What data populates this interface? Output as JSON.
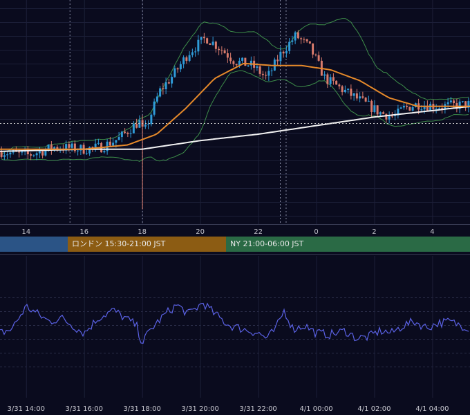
{
  "colors": {
    "background": "#0a0b1e",
    "up_candle": "#2f9bd8",
    "down_candle": "#d97b6c",
    "bollinger": "#3e8f4a",
    "ma_short": "#e78a2a",
    "ma_long": "#f2f2f2",
    "oscillator": "#5b62e6",
    "session_tokyo": "#2b5486",
    "session_london": "#8c5c13",
    "session_ny": "#2a6a45"
  },
  "sessions": [
    {
      "id": "tokyo",
      "label": ""
    },
    {
      "id": "london",
      "label": "ロンドン 15:30-21:00 JST"
    },
    {
      "id": "ny",
      "label": "NY 21:00-06:00 JST"
    }
  ],
  "chart_data": [
    {
      "type": "candlestick",
      "x_ticks": [
        "14",
        "16",
        "18",
        "20",
        "22",
        "0",
        "2",
        "4"
      ],
      "x_tick_hours": [
        14,
        16,
        18,
        20,
        22,
        24,
        26,
        28
      ],
      "x_range_hours": [
        13.1,
        29.3
      ],
      "price_path": [
        [
          13.1,
          0.32
        ],
        [
          14.0,
          0.3
        ],
        [
          15.0,
          0.34
        ],
        [
          16.0,
          0.33
        ],
        [
          16.6,
          0.34
        ],
        [
          17.2,
          0.38
        ],
        [
          17.9,
          0.46
        ],
        [
          18.05,
          0.4
        ],
        [
          18.6,
          0.6
        ],
        [
          19.1,
          0.68
        ],
        [
          19.6,
          0.78
        ],
        [
          20.2,
          0.85
        ],
        [
          20.7,
          0.8
        ],
        [
          21.2,
          0.74
        ],
        [
          21.8,
          0.72
        ],
        [
          22.3,
          0.66
        ],
        [
          22.8,
          0.78
        ],
        [
          23.3,
          0.86
        ],
        [
          23.8,
          0.8
        ],
        [
          24.3,
          0.66
        ],
        [
          25.0,
          0.6
        ],
        [
          25.6,
          0.55
        ],
        [
          26.2,
          0.5
        ],
        [
          26.7,
          0.48
        ],
        [
          27.0,
          0.52
        ],
        [
          27.5,
          0.54
        ],
        [
          28.3,
          0.53
        ],
        [
          29.3,
          0.54
        ]
      ],
      "ma_short_path": [
        [
          13.1,
          0.33
        ],
        [
          16.0,
          0.33
        ],
        [
          17.5,
          0.35
        ],
        [
          18.5,
          0.4
        ],
        [
          19.5,
          0.52
        ],
        [
          20.5,
          0.66
        ],
        [
          21.5,
          0.73
        ],
        [
          22.5,
          0.72
        ],
        [
          23.5,
          0.72
        ],
        [
          24.5,
          0.7
        ],
        [
          25.5,
          0.65
        ],
        [
          26.5,
          0.57
        ],
        [
          27.5,
          0.53
        ],
        [
          29.3,
          0.53
        ]
      ],
      "ma_long_path": [
        [
          13.1,
          0.32
        ],
        [
          16.0,
          0.33
        ],
        [
          18.0,
          0.33
        ],
        [
          20.0,
          0.37
        ],
        [
          22.0,
          0.4
        ],
        [
          24.0,
          0.44
        ],
        [
          26.0,
          0.48
        ],
        [
          28.0,
          0.51
        ],
        [
          29.3,
          0.53
        ]
      ]
    },
    {
      "type": "line",
      "x_ticks": [
        "3/31 14:00",
        "3/31 16:00",
        "3/31 18:00",
        "3/31 20:00",
        "3/31 22:00",
        "4/1 00:00",
        "4/1 02:00",
        "4/1 04:00"
      ],
      "oscillator_path": [
        [
          13.1,
          0.35
        ],
        [
          13.5,
          0.4
        ],
        [
          14.0,
          0.7
        ],
        [
          14.4,
          0.6
        ],
        [
          14.8,
          0.5
        ],
        [
          15.2,
          0.55
        ],
        [
          15.6,
          0.45
        ],
        [
          16.0,
          0.35
        ],
        [
          16.5,
          0.55
        ],
        [
          17.0,
          0.65
        ],
        [
          17.4,
          0.55
        ],
        [
          17.8,
          0.45
        ],
        [
          18.0,
          0.22
        ],
        [
          18.3,
          0.4
        ],
        [
          18.8,
          0.6
        ],
        [
          19.2,
          0.72
        ],
        [
          19.6,
          0.6
        ],
        [
          20.1,
          0.75
        ],
        [
          20.5,
          0.6
        ],
        [
          21.0,
          0.45
        ],
        [
          21.5,
          0.4
        ],
        [
          22.0,
          0.35
        ],
        [
          22.3,
          0.28
        ],
        [
          22.6,
          0.4
        ],
        [
          22.9,
          0.65
        ],
        [
          23.2,
          0.4
        ],
        [
          23.6,
          0.45
        ],
        [
          24.0,
          0.35
        ],
        [
          24.5,
          0.33
        ],
        [
          25.0,
          0.38
        ],
        [
          25.4,
          0.28
        ],
        [
          25.8,
          0.3
        ],
        [
          26.2,
          0.38
        ],
        [
          26.6,
          0.35
        ],
        [
          27.0,
          0.45
        ],
        [
          27.4,
          0.5
        ],
        [
          27.8,
          0.42
        ],
        [
          28.2,
          0.48
        ],
        [
          28.6,
          0.5
        ],
        [
          29.0,
          0.45
        ],
        [
          29.3,
          0.42
        ]
      ]
    }
  ]
}
